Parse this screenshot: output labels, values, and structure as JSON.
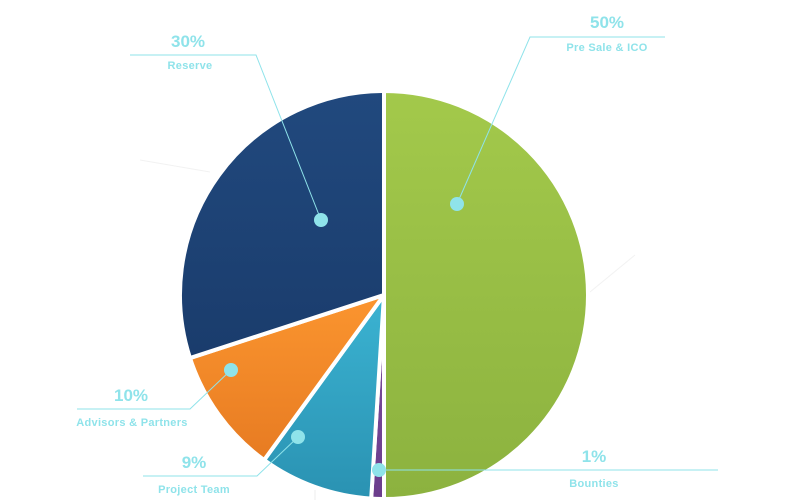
{
  "chart_data": {
    "type": "pie",
    "title": "",
    "slices": [
      {
        "label": "Pre Sale & ICO",
        "value": 50,
        "value_label": "50%",
        "color": "#8cb23f",
        "color_light": "#a3c94b"
      },
      {
        "label": "Bounties",
        "value": 1,
        "value_label": "1%",
        "color": "#6b3d8c",
        "color_light": "#7d4ea0"
      },
      {
        "label": "Project Team",
        "value": 9,
        "value_label": "9%",
        "color": "#2a92b2",
        "color_light": "#3bb3d2"
      },
      {
        "label": "Advisors & Partners",
        "value": 10,
        "value_label": "10%",
        "color": "#e77b22",
        "color_light": "#fb952f"
      },
      {
        "label": "Reserve",
        "value": 30,
        "value_label": "30%",
        "color": "#1a3c6c",
        "color_light": "#21497e"
      }
    ],
    "start_angle_deg": 0,
    "direction": "clockwise",
    "label_color": "#8fe3ea",
    "leader_color": "#8fe3ea"
  }
}
